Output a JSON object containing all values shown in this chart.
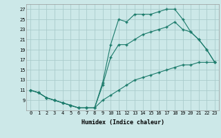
{
  "xlabel": "Humidex (Indice chaleur)",
  "bg_color": "#cce8e8",
  "grid_color": "#aacccc",
  "line_color": "#1a7a6a",
  "xlim": [
    -0.5,
    23.5
  ],
  "ylim": [
    7,
    28
  ],
  "yticks": [
    9,
    11,
    13,
    15,
    17,
    19,
    21,
    23,
    25,
    27
  ],
  "xticks": [
    0,
    1,
    2,
    3,
    4,
    5,
    6,
    7,
    8,
    9,
    10,
    11,
    12,
    13,
    14,
    15,
    16,
    17,
    18,
    19,
    20,
    21,
    22,
    23
  ],
  "line1_x": [
    0,
    1,
    2,
    3,
    4,
    5,
    6,
    7,
    8,
    9,
    10,
    11,
    12,
    13,
    14,
    15,
    16,
    17,
    18,
    19,
    20,
    21,
    22,
    23
  ],
  "line1_y": [
    11,
    10.5,
    9.5,
    9,
    8.5,
    8,
    7.5,
    7.5,
    7.5,
    12.5,
    20,
    25,
    24.5,
    26,
    26,
    26,
    26.5,
    27,
    27,
    25,
    22.5,
    21,
    19,
    16.5
  ],
  "line2_x": [
    0,
    1,
    2,
    3,
    4,
    5,
    6,
    7,
    8,
    9,
    10,
    11,
    12,
    13,
    14,
    15,
    16,
    17,
    18,
    19,
    20,
    21,
    22,
    23
  ],
  "line2_y": [
    11,
    10.5,
    9.5,
    9,
    8.5,
    8,
    7.5,
    7.5,
    7.5,
    12,
    17.5,
    20,
    20,
    21,
    22,
    22.5,
    23,
    23.5,
    24.5,
    23,
    22.5,
    21,
    19,
    16.5
  ],
  "line3_x": [
    0,
    1,
    2,
    3,
    4,
    5,
    6,
    7,
    8,
    9,
    10,
    11,
    12,
    13,
    14,
    15,
    16,
    17,
    18,
    19,
    20,
    21,
    22,
    23
  ],
  "line3_y": [
    11,
    10.5,
    9.5,
    9,
    8.5,
    8,
    7.5,
    7.5,
    7.5,
    9,
    10,
    11,
    12,
    13,
    13.5,
    14,
    14.5,
    15,
    15.5,
    16,
    16,
    16.5,
    16.5,
    16.5
  ]
}
